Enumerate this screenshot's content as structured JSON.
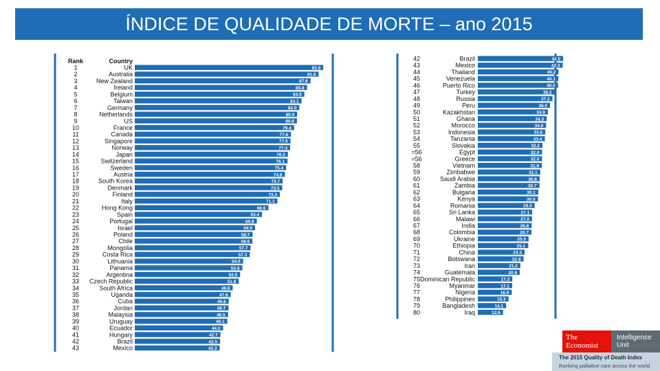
{
  "header": {
    "title": "ÍNDICE DE QUALIDADE DE MORTE – ano 2015"
  },
  "logo": {
    "economist_line1": "The",
    "economist_line2": "Economist",
    "intelligence_line1": "Intelligence",
    "intelligence_line2": "Unit",
    "report_title": "The 2015 Quality of Death Index",
    "report_subtitle": "Ranking palliative care across the world"
  },
  "colors": {
    "title_bg": "#1f6db5",
    "bar": "#1f6db5",
    "label": "#ffffff",
    "text": "#111111",
    "frame": "#1f6db5"
  },
  "chart_data": [
    {
      "type": "bar",
      "orientation": "horizontal",
      "col_headers": [
        "Rank",
        "Country"
      ],
      "rows": [
        {
          "rank": "1",
          "country": "UK",
          "value": 93.9
        },
        {
          "rank": "2",
          "country": "Australia",
          "value": 91.6
        },
        {
          "rank": "3",
          "country": "New Zealand",
          "value": 87.6
        },
        {
          "rank": "4",
          "country": "Ireland",
          "value": 85.8
        },
        {
          "rank": "5",
          "country": "Belgium",
          "value": 84.5
        },
        {
          "rank": "6",
          "country": "Taiwan",
          "value": 83.1
        },
        {
          "rank": "7",
          "country": "Germany",
          "value": 82.0
        },
        {
          "rank": "8",
          "country": "Netherlands",
          "value": 80.9
        },
        {
          "rank": "9",
          "country": "US",
          "value": 80.8
        },
        {
          "rank": "10",
          "country": "France",
          "value": 79.4
        },
        {
          "rank": "11",
          "country": "Canada",
          "value": 77.8
        },
        {
          "rank": "12",
          "country": "Singapore",
          "value": 77.6
        },
        {
          "rank": "13",
          "country": "Norway",
          "value": 77.4
        },
        {
          "rank": "14",
          "country": "Japan",
          "value": 76.3
        },
        {
          "rank": "15",
          "country": "Switzerland",
          "value": 76.1
        },
        {
          "rank": "16",
          "country": "Sweden",
          "value": 75.4
        },
        {
          "rank": "17",
          "country": "Austria",
          "value": 74.8
        },
        {
          "rank": "18",
          "country": "South Korea",
          "value": 73.7
        },
        {
          "rank": "19",
          "country": "Denmark",
          "value": 73.5
        },
        {
          "rank": "20",
          "country": "Finland",
          "value": 72.3
        },
        {
          "rank": "21",
          "country": "Italy",
          "value": 71.1
        },
        {
          "rank": "22",
          "country": "Hong Kong",
          "value": 66.6
        },
        {
          "rank": "23",
          "country": "Spain",
          "value": 63.4
        },
        {
          "rank": "24",
          "country": "Portugal",
          "value": 60.8
        },
        {
          "rank": "25",
          "country": "Israel",
          "value": 59.9
        },
        {
          "rank": "26",
          "country": "Poland",
          "value": 58.7
        },
        {
          "rank": "27",
          "country": "Chile",
          "value": 58.6
        },
        {
          "rank": "28",
          "country": "Mongolia",
          "value": 57.7
        },
        {
          "rank": "29",
          "country": "Costa Rica",
          "value": 57.3
        },
        {
          "rank": "30",
          "country": "Lithuania",
          "value": 54.0
        },
        {
          "rank": "31",
          "country": "Panama",
          "value": 53.6
        },
        {
          "rank": "32",
          "country": "Argentina",
          "value": 52.5
        },
        {
          "rank": "33",
          "country": "Czech Republic",
          "value": 51.8
        },
        {
          "rank": "34",
          "country": "South Africa",
          "value": 48.8
        },
        {
          "rank": "35",
          "country": "Uganda",
          "value": 47.8
        },
        {
          "rank": "36",
          "country": "Cuba",
          "value": 46.8
        },
        {
          "rank": "37",
          "country": "Jordan",
          "value": 46.7
        },
        {
          "rank": "38",
          "country": "Malaysia",
          "value": 46.5
        },
        {
          "rank": "39",
          "country": "Uruguay",
          "value": 46.1
        },
        {
          "rank": "40",
          "country": "Ecuador",
          "value": 44.0
        },
        {
          "rank": "41",
          "country": "Hungary",
          "value": 42.7
        },
        {
          "rank": "42",
          "country": "Brazil",
          "value": 42.5
        },
        {
          "rank": "43",
          "country": "Mexico",
          "value": 42.3
        }
      ]
    },
    {
      "type": "bar",
      "orientation": "horizontal",
      "col_headers": [],
      "rows": [
        {
          "rank": "42",
          "country": "Brazil",
          "value": 42.5
        },
        {
          "rank": "43",
          "country": "Mexico",
          "value": 42.3
        },
        {
          "rank": "44",
          "country": "Thailand",
          "value": 40.2
        },
        {
          "rank": "45",
          "country": "Venezuela",
          "value": 40.1
        },
        {
          "rank": "46",
          "country": "Puerto Rico",
          "value": 40.0
        },
        {
          "rank": "47",
          "country": "Turkey",
          "value": 38.2
        },
        {
          "rank": "48",
          "country": "Russia",
          "value": 37.2
        },
        {
          "rank": "49",
          "country": "Peru",
          "value": 36.0
        },
        {
          "rank": "50",
          "country": "Kazakhstan",
          "value": 34.9
        },
        {
          "rank": "51",
          "country": "Ghana",
          "value": 34.3
        },
        {
          "rank": "52",
          "country": "Morocco",
          "value": 34.0
        },
        {
          "rank": "53",
          "country": "Indonesia",
          "value": 33.6
        },
        {
          "rank": "54",
          "country": "Tanzania",
          "value": 33.4
        },
        {
          "rank": "55",
          "country": "Slovakia",
          "value": 32.2
        },
        {
          "rank": "=56",
          "country": "Egypt",
          "value": 32.0
        },
        {
          "rank": "=56",
          "country": "Greece",
          "value": 32.0
        },
        {
          "rank": "58",
          "country": "Vietnam",
          "value": 31.9
        },
        {
          "rank": "59",
          "country": "Zimbabwe",
          "value": 31.1
        },
        {
          "rank": "60",
          "country": "Saudi Arabia",
          "value": 30.8
        },
        {
          "rank": "61",
          "country": "Zambia",
          "value": 30.7
        },
        {
          "rank": "62",
          "country": "Bulgaria",
          "value": 30.1
        },
        {
          "rank": "63",
          "country": "Kenya",
          "value": 30.0
        },
        {
          "rank": "64",
          "country": "Romania",
          "value": 28.3
        },
        {
          "rank": "65",
          "country": "Sri Lanka",
          "value": 27.1
        },
        {
          "rank": "66",
          "country": "Malawi",
          "value": 27.0
        },
        {
          "rank": "67",
          "country": "India",
          "value": 26.8
        },
        {
          "rank": "68",
          "country": "Colombia",
          "value": 26.7
        },
        {
          "rank": "69",
          "country": "Ukraine",
          "value": 25.3
        },
        {
          "rank": "70",
          "country": "Ethiopia",
          "value": 25.1
        },
        {
          "rank": "71",
          "country": "China",
          "value": 23.3
        },
        {
          "rank": "72",
          "country": "Botswana",
          "value": 22.8
        },
        {
          "rank": "73",
          "country": "Iran",
          "value": 21.2
        },
        {
          "rank": "74",
          "country": "Guatemala",
          "value": 20.9
        },
        {
          "rank": "75",
          "country": "Dominican Republic",
          "value": 17.2
        },
        {
          "rank": "76",
          "country": "Myanmar",
          "value": 17.1
        },
        {
          "rank": "77",
          "country": "Nigeria",
          "value": 16.9
        },
        {
          "rank": "78",
          "country": "Philippines",
          "value": 15.3
        },
        {
          "rank": "79",
          "country": "Bangladesh",
          "value": 14.1
        },
        {
          "rank": "80",
          "country": "Iraq",
          "value": 12.6
        }
      ]
    }
  ]
}
